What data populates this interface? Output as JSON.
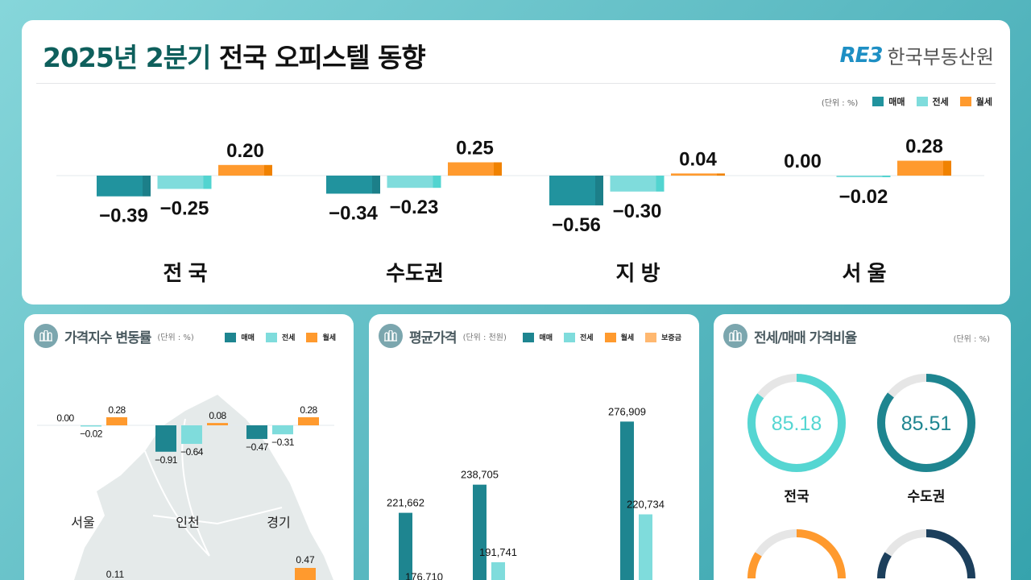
{
  "header": {
    "title_highlight": "2025년 2분기",
    "title_rest": "전국 오피스텔 동향",
    "logo_mark": "RE3",
    "logo_text": "한국부동산원"
  },
  "colors": {
    "sale": "#21939e",
    "jeonse": "#7fdcdc",
    "monthly": "#ff9a2e",
    "deposit": "#ffb870",
    "accent": "#0e5f5c"
  },
  "legend": {
    "unit": "(단위 : %)",
    "sale": "매매",
    "jeonse": "전세",
    "monthly": "월세",
    "deposit": "보증금"
  },
  "chart_data": [
    {
      "type": "bar",
      "series": [
        {
          "name": "매매",
          "values": [
            -0.39,
            -0.34,
            -0.56,
            0.0
          ]
        },
        {
          "name": "전세",
          "values": [
            -0.25,
            -0.23,
            -0.3,
            -0.02
          ]
        },
        {
          "name": "월세",
          "values": [
            0.2,
            0.25,
            0.04,
            0.28
          ]
        }
      ],
      "categories": [
        "전 국",
        "수도권",
        "지 방",
        "서 울"
      ],
      "labels": [
        [
          "−0.39",
          "−0.25",
          "0.20"
        ],
        [
          "−0.34",
          "−0.23",
          "0.25"
        ],
        [
          "−0.56",
          "−0.30",
          "0.04"
        ],
        [
          "0.00",
          "−0.02",
          "0.28"
        ]
      ]
    },
    {
      "type": "bar",
      "title": "가격지수 변동률",
      "unit": "(단위 : %)",
      "categories": [
        "서울",
        "인천",
        "경기"
      ],
      "series": [
        {
          "name": "매매",
          "values": [
            0.0,
            -0.91,
            -0.47
          ]
        },
        {
          "name": "전세",
          "values": [
            -0.02,
            -0.64,
            -0.31
          ]
        },
        {
          "name": "월세",
          "values": [
            0.28,
            0.08,
            0.28
          ]
        }
      ],
      "labels": [
        [
          "0.00",
          "−0.02",
          "0.28"
        ],
        [
          "−0.91",
          "−0.64",
          "0.08"
        ],
        [
          "−0.47",
          "−0.31",
          "0.28"
        ]
      ],
      "extra_labels": [
        "0.11",
        "0.47"
      ]
    },
    {
      "type": "bar",
      "title": "평균가격",
      "unit": "(단위 : 천원)",
      "series": [
        {
          "name": "매매",
          "values": [
            221662,
            238705,
            null,
            276909
          ]
        },
        {
          "name": "전세",
          "values": [
            176710,
            191741,
            null,
            220734
          ]
        }
      ],
      "labels": [
        [
          "221,662",
          "176,710"
        ],
        [
          "238,705",
          "191,741"
        ],
        [
          "",
          ""
        ],
        [
          "276,909",
          "220,734"
        ]
      ]
    },
    {
      "type": "pie",
      "title": "전세/매매 가격비율",
      "unit": "(단위 : %)",
      "items": [
        {
          "label": "전국",
          "value": 85.18,
          "display": "85.18",
          "color": "#55d6d2"
        },
        {
          "label": "수도권",
          "value": 85.51,
          "display": "85.51",
          "color": "#1e8590"
        }
      ],
      "partial_rings": [
        {
          "color": "#ff9a2e",
          "value": 84
        },
        {
          "color": "#1c3f5c",
          "value": 84
        }
      ]
    }
  ]
}
